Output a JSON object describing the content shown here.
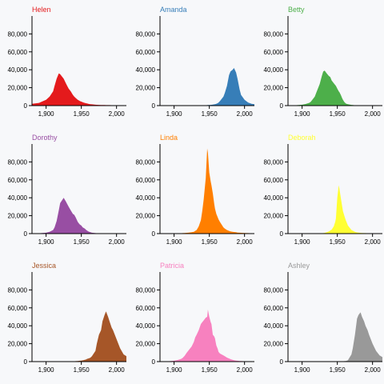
{
  "chart_data": {
    "type": "area",
    "xlim": [
      1880,
      2014
    ],
    "ylim": [
      0,
      100000
    ],
    "x_ticks": [
      1900,
      1950,
      2000
    ],
    "y_ticks": [
      0,
      20000,
      40000,
      60000,
      80000
    ],
    "tick_labels": {
      "x": [
        "1,900",
        "1,950",
        "2,000"
      ],
      "y": [
        "0",
        "20,000",
        "40,000",
        "60,000",
        "80,000"
      ]
    },
    "grid": false,
    "legend": "none",
    "x": [
      1880,
      1890,
      1900,
      1905,
      1910,
      1912,
      1915,
      1918,
      1920,
      1925,
      1928,
      1930,
      1932,
      1935,
      1938,
      1940,
      1942,
      1945,
      1947,
      1948,
      1950,
      1952,
      1953,
      1955,
      1957,
      1958,
      1960,
      1962,
      1963,
      1965,
      1970,
      1972,
      1975,
      1978,
      1980,
      1983,
      1985,
      1988,
      1990,
      1993,
      1995,
      2000,
      2005,
      2010,
      2014
    ],
    "series": [
      {
        "name": "Helen",
        "color": "#e41a1c",
        "values": [
          2000,
          3000,
          6500,
          10000,
          16000,
          22000,
          30000,
          36000,
          35000,
          30000,
          25000,
          22000,
          19000,
          16000,
          12000,
          10000,
          8500,
          6500,
          5500,
          5000,
          4500,
          3800,
          3500,
          3000,
          2600,
          2400,
          2000,
          1700,
          1600,
          1400,
          1000,
          900,
          800,
          700,
          600,
          600,
          500,
          500,
          500,
          450,
          400,
          350,
          300,
          300,
          300
        ]
      },
      {
        "name": "Amanda",
        "color": "#377eb8",
        "values": [
          200,
          200,
          300,
          300,
          400,
          400,
          400,
          400,
          400,
          300,
          300,
          300,
          300,
          300,
          300,
          300,
          300,
          400,
          500,
          600,
          700,
          800,
          900,
          1200,
          1400,
          1500,
          2000,
          2800,
          3400,
          5000,
          10000,
          14000,
          22000,
          34000,
          38000,
          40000,
          42000,
          37000,
          30000,
          18000,
          12000,
          6500,
          3500,
          2000,
          1500
        ]
      },
      {
        "name": "Betty",
        "color": "#4daf4a",
        "values": [
          200,
          400,
          1000,
          1800,
          3000,
          4000,
          7000,
          10000,
          14000,
          24000,
          33000,
          38000,
          39000,
          36000,
          33000,
          32000,
          28000,
          25000,
          23000,
          22000,
          19000,
          16000,
          15000,
          12000,
          8000,
          6500,
          4000,
          2500,
          2000,
          1500,
          800,
          600,
          400,
          300,
          300,
          250,
          200,
          200,
          200,
          150,
          150,
          100,
          100,
          100,
          100
        ]
      },
      {
        "name": "Dorothy",
        "color": "#984ea3",
        "values": [
          200,
          400,
          1000,
          2000,
          4000,
          7000,
          14000,
          26000,
          34000,
          40000,
          36000,
          33000,
          30000,
          26000,
          22000,
          21000,
          18000,
          13000,
          11000,
          10000,
          9000,
          7000,
          6500,
          5500,
          4000,
          3500,
          2500,
          1800,
          1500,
          1000,
          500,
          400,
          300,
          200,
          200,
          150,
          100,
          100,
          100,
          100,
          100,
          100,
          100,
          100,
          100
        ]
      },
      {
        "name": "Linda",
        "color": "#ff7f00",
        "values": [
          100,
          100,
          200,
          300,
          400,
          500,
          700,
          900,
          1000,
          1500,
          2000,
          3000,
          4000,
          8000,
          15000,
          25000,
          38000,
          62000,
          95000,
          90000,
          68000,
          58000,
          54000,
          45000,
          33000,
          28000,
          22000,
          18000,
          16000,
          13000,
          7000,
          5500,
          4000,
          3000,
          2500,
          2000,
          1800,
          1500,
          1200,
          1000,
          900,
          700,
          500,
          400,
          300
        ]
      },
      {
        "name": "Deborah",
        "color": "#ffff33",
        "values": [
          50,
          50,
          100,
          100,
          100,
          100,
          150,
          150,
          200,
          300,
          400,
          500,
          800,
          1500,
          2500,
          3500,
          4500,
          8000,
          13000,
          17000,
          40000,
          54000,
          50000,
          40000,
          30000,
          25000,
          20000,
          15000,
          13000,
          9000,
          4000,
          3200,
          2000,
          1300,
          1100,
          800,
          700,
          500,
          500,
          400,
          300,
          200,
          150,
          100,
          100
        ]
      },
      {
        "name": "Jessica",
        "color": "#a65628",
        "values": [
          100,
          100,
          100,
          100,
          100,
          100,
          100,
          150,
          150,
          200,
          200,
          200,
          250,
          300,
          350,
          400,
          500,
          700,
          900,
          1000,
          1200,
          1400,
          1500,
          2000,
          2500,
          3000,
          3500,
          4000,
          4500,
          6000,
          12000,
          20000,
          30000,
          35000,
          45000,
          52000,
          56000,
          50000,
          45000,
          38000,
          35000,
          25000,
          15000,
          8000,
          6000
        ]
      },
      {
        "name": "Patricia",
        "color": "#f781bf",
        "values": [
          100,
          300,
          1000,
          1800,
          3000,
          4000,
          6500,
          10000,
          12000,
          17000,
          22000,
          27000,
          30000,
          35000,
          42000,
          44000,
          46000,
          49000,
          50000,
          58000,
          50000,
          44000,
          42000,
          30000,
          28000,
          26000,
          18000,
          14000,
          11000,
          9000,
          7000,
          6000,
          4500,
          3500,
          2800,
          2000,
          1500,
          1200,
          1000,
          700,
          600,
          400,
          250,
          150,
          100
        ]
      },
      {
        "name": "Ashley",
        "color": "#999999",
        "values": [
          0,
          0,
          0,
          0,
          0,
          0,
          0,
          0,
          0,
          0,
          0,
          0,
          0,
          0,
          0,
          0,
          0,
          0,
          0,
          0,
          50,
          100,
          100,
          200,
          300,
          400,
          500,
          700,
          900,
          1500,
          8000,
          15000,
          30000,
          48000,
          52000,
          55000,
          50000,
          45000,
          40000,
          35000,
          30000,
          20000,
          12000,
          7000,
          5000
        ]
      }
    ]
  }
}
